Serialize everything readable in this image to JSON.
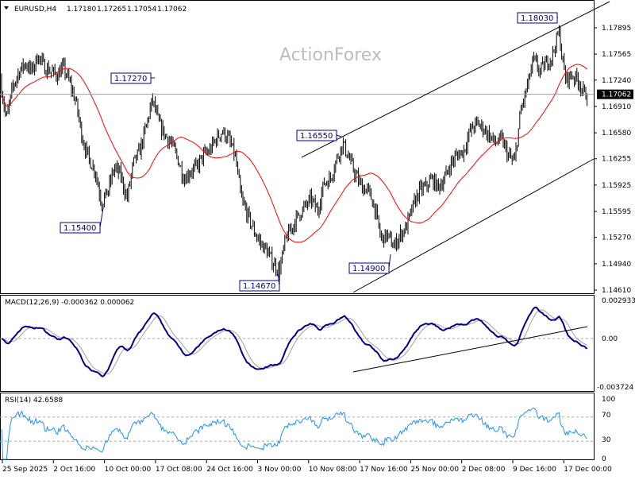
{
  "header": {
    "symbol": "EURUSD,H4",
    "open": "1.17180",
    "high": "1.17265",
    "low": "1.17054",
    "close": "1.17062"
  },
  "watermark": "ActionForex",
  "colors": {
    "bars": "#000000",
    "ma": "#ff0000",
    "macd": "#00008b",
    "signal": "#a0a0a0",
    "rsi": "#1e90ff",
    "label_border": "#00008b"
  },
  "chart_data": {
    "type": "ohlc",
    "title": "EURUSD,H4",
    "price_axis": {
      "ticks": [
        "1.17895",
        "1.17565",
        "1.17240",
        "1.16910",
        "1.16580",
        "1.16255",
        "1.15925",
        "1.15595",
        "1.15270",
        "1.14940",
        "1.14610"
      ],
      "range": [
        1.1461,
        1.17895
      ],
      "current": "1.17062"
    },
    "time_axis": {
      "ticks": [
        "25 Sep 2025",
        "2 Oct 16:00",
        "10 Oct 00:00",
        "17 Oct 08:00",
        "24 Oct 16:00",
        "3 Nov 00:00",
        "10 Nov 08:00",
        "17 Nov 16:00",
        "25 Nov 00:00",
        "2 Dec 08:00",
        "9 Dec 16:00",
        "17 Dec 00:00"
      ]
    },
    "approx_close_path": [
      1.1725,
      1.1675,
      1.1715,
      1.1735,
      1.1745,
      1.1735,
      1.1755,
      1.174,
      1.1735,
      1.173,
      1.174,
      1.172,
      1.1695,
      1.165,
      1.1625,
      1.161,
      1.157,
      1.1585,
      1.1615,
      1.1605,
      1.1575,
      1.162,
      1.1635,
      1.1665,
      1.17,
      1.167,
      1.1655,
      1.1645,
      1.1625,
      1.16,
      1.161,
      1.1615,
      1.163,
      1.1635,
      1.165,
      1.166,
      1.165,
      1.163,
      1.1575,
      1.1555,
      1.1535,
      1.152,
      1.151,
      1.1495,
      1.1485,
      1.1525,
      1.154,
      1.1555,
      1.1565,
      1.1575,
      1.156,
      1.1595,
      1.16,
      1.1625,
      1.1645,
      1.1625,
      1.1605,
      1.159,
      1.1585,
      1.1565,
      1.1525,
      1.153,
      1.1515,
      1.153,
      1.154,
      1.1565,
      1.1585,
      1.159,
      1.16,
      1.159,
      1.16,
      1.162,
      1.163,
      1.1635,
      1.166,
      1.167,
      1.1665,
      1.1655,
      1.1645,
      1.165,
      1.163,
      1.162,
      1.1685,
      1.1715,
      1.175,
      1.1735,
      1.1745,
      1.1755,
      1.1785,
      1.1725,
      1.173,
      1.1725,
      1.1706
    ],
    "moving_average": "red",
    "annotations": [
      "1.17270",
      "1.15400",
      "1.14670",
      "1.16550",
      "1.14900",
      "1.18030"
    ],
    "indicators": {
      "macd": {
        "label": "MACD(12,26,9) -0.000362 0.000062",
        "ticks": [
          "0.002933",
          "0.00",
          "-0.003724"
        ],
        "range": [
          -0.003724,
          0.002933
        ]
      },
      "rsi": {
        "label": "RSI(14) 42.6588",
        "ticks": [
          "100",
          "70",
          "30",
          "0"
        ],
        "range": [
          0,
          100
        ],
        "levels": [
          70,
          30
        ]
      }
    }
  }
}
